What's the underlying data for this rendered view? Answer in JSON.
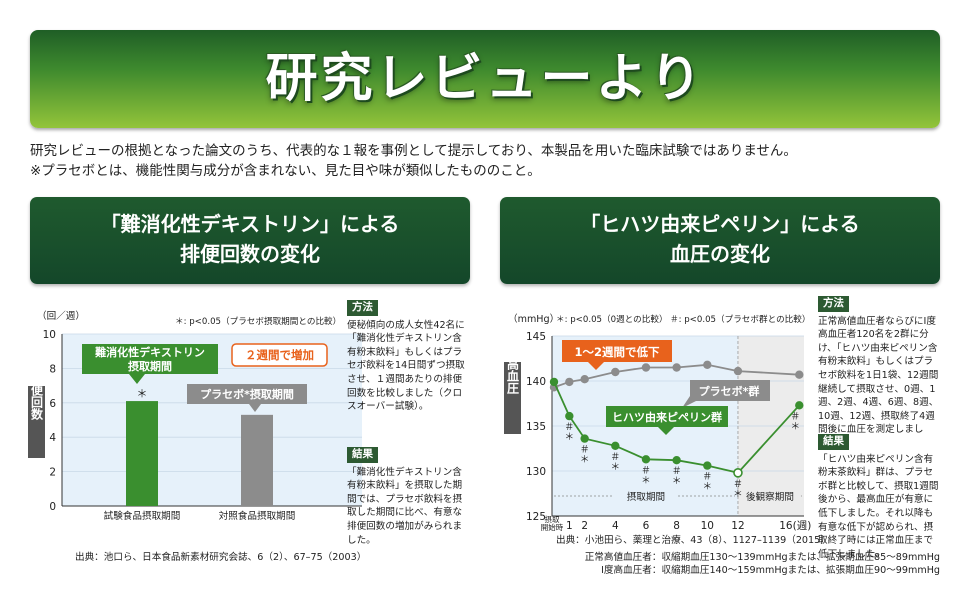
{
  "banner": {
    "title": "研究レビューより"
  },
  "intro": {
    "line1": "研究レビューの根拠となった論文のうち、代表的な１報を事例として提示しており、本製品を用いた臨床試験ではありません。",
    "line2": "※プラセボとは、機能性関与成分が含まれない、見た目や味が類似したもののこと。"
  },
  "left_section": {
    "title_line1": "「難消化性デキストリン」による",
    "title_line2": "排便回数の変化",
    "y_unit": "（回／週）",
    "sig_note": "＊: p<0.05（プラセボ摂取期間との比較）",
    "ylabel": "排便回数",
    "callout_test": "難消化性デキストリン摂取期間",
    "callout_placebo": "プラセボ*摂取期間",
    "callout_increase": "２週間で増加",
    "sig_mark": "＊",
    "method_tag": "方法",
    "method_text": "便秘傾向の成人女性42名に「難消化性デキストリン含有粉末飲料」もしくはプラセボ飲料を14日間ずつ摂取させ、１週間あたりの排便回数を比較しました（クロスオーバー試験）。",
    "result_tag": "結果",
    "result_text": "「難消化性デキストリン含有粉末飲料」を摂取した期間では、プラセボ飲料を摂取した期間に比べ、有意な排便回数の増加がみられました。",
    "source": "出典：池口ら、日本食品新素材研究会誌、6（2）、67–75（2003）"
  },
  "right_section": {
    "title_line1": "「ヒハツ由来ピペリン」による",
    "title_line2": "血圧の変化",
    "y_unit": "（mmHg）",
    "sig_note1": "＊: p<0.05（0週との比較）",
    "sig_note2": "＃: p<0.05（プラセボ群との比較）",
    "ylabel": "最高血圧",
    "callout_decrease": "1〜2週間で低下",
    "callout_placebo": "プラセボ*群",
    "callout_test": "ヒハツ由来ピペリン群",
    "period_intake": "摂取期間",
    "period_follow": "後観察期間",
    "x_start_label": "摂取開始時",
    "x_unit_label": "16(週)",
    "method_tag": "方法",
    "method_text": "正常高値血圧者ならびにⅠ度高血圧者120名を2群に分け、「ヒハツ由来ピペリン含有粉末飲料」もしくはプラセボ飲料を1日1袋、12週間継続して摂取させ、0週、1週、2週、4週、6週、8週、10週、12週、摂取終了4週間後に血圧を測定しました。",
    "result_tag": "結果",
    "result_text": "「ヒハツ由来ピペリン含有粉末茶飲料」群は、プラセボ群と比較して、摂取1週間後から、最高血圧が有意に低下しました。それ以降も有意な低下が認められ、摂取終了時には正常血圧まで低下しました。",
    "source": "出典：小池田ら、薬理と治療、43（8）、1127–1139（2015）",
    "std1": "正常高値血圧者：収縮期血圧130〜139mmHgまたは、拡張期血圧85〜89mmHg",
    "std2": "Ⅰ度高血圧者：収縮期血圧140〜159mmHgまたは、拡張期血圧90〜99mmHg"
  },
  "colors": {
    "green": "#3a8f2f",
    "gray": "#8c8c8c",
    "dark_green": "#1f5a2e",
    "orange": "#e8621c",
    "plot_bg": "#e6f1fa"
  },
  "chart_data": [
    {
      "type": "bar",
      "categories": [
        "試験食品摂取期間",
        "対照食品摂取期間"
      ],
      "values": [
        6.1,
        5.3
      ],
      "ylim": [
        0,
        10
      ],
      "yticks": [
        0,
        2,
        4,
        6,
        8,
        10
      ],
      "ylabel": "排便回数",
      "unit": "（回／週）"
    },
    {
      "type": "line",
      "x": [
        0,
        1,
        2,
        4,
        6,
        8,
        10,
        12,
        16
      ],
      "xticks": [
        1,
        2,
        4,
        6,
        8,
        10,
        12
      ],
      "ylim": [
        125,
        145
      ],
      "yticks": [
        125,
        130,
        135,
        140,
        145
      ],
      "ylabel": "最高血圧",
      "unit": "（mmHg）",
      "series": [
        {
          "name": "プラセボ*群",
          "values": [
            139.3,
            139.9,
            140.2,
            141.0,
            141.5,
            141.5,
            141.8,
            141.1,
            140.7
          ]
        },
        {
          "name": "ヒハツ由来ピペリン群",
          "values": [
            139.9,
            136.1,
            133.6,
            132.8,
            131.3,
            131.2,
            130.6,
            129.8,
            137.3
          ],
          "annotations": [
            "",
            "＃＊",
            "＃＊",
            "＃＊",
            "＃＊",
            "＃＊",
            "＃＊",
            "＃＊",
            "＃＊"
          ]
        }
      ]
    }
  ]
}
